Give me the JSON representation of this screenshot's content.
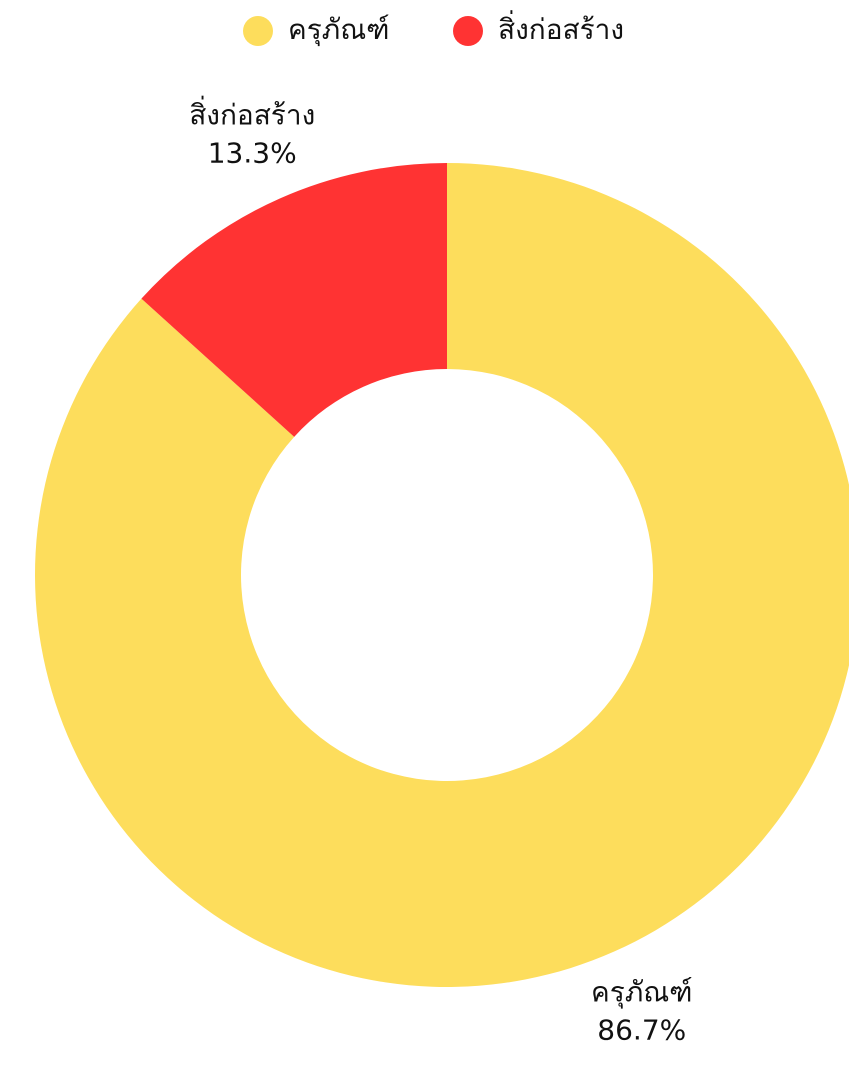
{
  "chart_data": {
    "type": "donut",
    "categories": [
      "ครุภัณฑ์",
      "สิ่งก่อสร้าง"
    ],
    "values": [
      86.7,
      13.3
    ],
    "value_labels": [
      "86.7%",
      "13.3%"
    ],
    "colors": [
      "#fddd5c",
      "#ff3333"
    ],
    "legend": "top"
  }
}
